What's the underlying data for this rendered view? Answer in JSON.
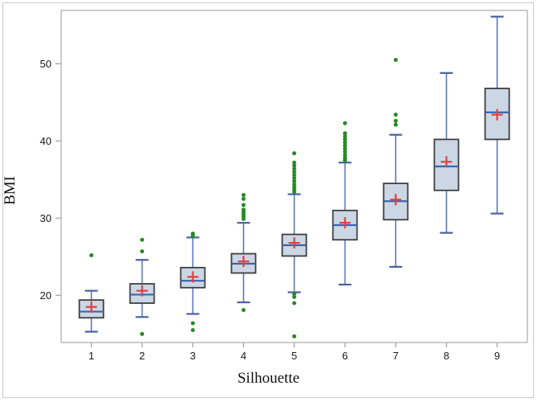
{
  "chart_data": {
    "type": "boxplot",
    "title": "",
    "xlabel": "Silhouette",
    "ylabel": "BMI",
    "x_categories": [
      "1",
      "2",
      "3",
      "4",
      "5",
      "6",
      "7",
      "8",
      "9"
    ],
    "y_ticks": [
      20,
      30,
      40,
      50
    ],
    "y_range": [
      13.9,
      56.9
    ],
    "legend": "none",
    "grid": false,
    "boxes": [
      {
        "category": "1",
        "whisker_low": 15.3,
        "q1": 17.1,
        "median": 17.9,
        "mean": 18.5,
        "q3": 19.4,
        "whisker_high": 20.6,
        "outliers": [
          25.2
        ]
      },
      {
        "category": "2",
        "whisker_low": 17.2,
        "q1": 19.0,
        "median": 20.1,
        "mean": 20.6,
        "q3": 21.5,
        "whisker_high": 24.6,
        "outliers": [
          27.2,
          25.7,
          15.0
        ]
      },
      {
        "category": "3",
        "whisker_low": 17.6,
        "q1": 21.0,
        "median": 21.9,
        "mean": 22.4,
        "q3": 23.6,
        "whisker_high": 27.5,
        "outliers": [
          28.0,
          27.7,
          16.4,
          15.5
        ]
      },
      {
        "category": "4",
        "whisker_low": 19.1,
        "q1": 22.9,
        "median": 24.1,
        "mean": 24.4,
        "q3": 25.4,
        "whisker_high": 29.4,
        "outliers": [
          33.0,
          32.5,
          31.7,
          31.1,
          30.8,
          30.5,
          30.2,
          29.9,
          18.1
        ]
      },
      {
        "category": "5",
        "whisker_low": 20.4,
        "q1": 25.1,
        "median": 26.5,
        "mean": 26.8,
        "q3": 27.9,
        "whisker_high": 33.1,
        "outliers": [
          38.4,
          37.2,
          36.8,
          36.4,
          36.0,
          35.6,
          35.2,
          34.8,
          34.4,
          34.0,
          33.7,
          33.4,
          20.2,
          19.8,
          19.0,
          14.7
        ]
      },
      {
        "category": "6",
        "whisker_low": 21.4,
        "q1": 27.2,
        "median": 29.1,
        "mean": 29.4,
        "q3": 31.0,
        "whisker_high": 37.2,
        "outliers": [
          42.3,
          41.0,
          40.6,
          40.2,
          39.8,
          39.4,
          39.0,
          38.6,
          38.2,
          37.8,
          37.5
        ]
      },
      {
        "category": "7",
        "whisker_low": 23.7,
        "q1": 29.8,
        "median": 32.2,
        "mean": 32.4,
        "q3": 34.5,
        "whisker_high": 40.8,
        "outliers": [
          50.5,
          43.4,
          42.6,
          42.1
        ]
      },
      {
        "category": "8",
        "whisker_low": 28.1,
        "q1": 33.6,
        "median": 36.7,
        "mean": 37.3,
        "q3": 40.2,
        "whisker_high": 48.8,
        "outliers": []
      },
      {
        "category": "9",
        "whisker_low": 30.6,
        "q1": 40.2,
        "median": 43.7,
        "mean": 43.4,
        "q3": 46.8,
        "whisker_high": 56.1,
        "outliers": []
      }
    ],
    "colors": {
      "box_fill": "#ccd7e5",
      "box_border": "#3e3e3e",
      "whisker": "#5a78ba",
      "whisker_cap": "#47619e",
      "median": "#3c63ad",
      "mean": "#e2403c",
      "outlier": "#248a24",
      "frame": "#a9a9a9",
      "tick_text": "#1a1a1a",
      "figure_border": "#c9c9c9"
    }
  }
}
